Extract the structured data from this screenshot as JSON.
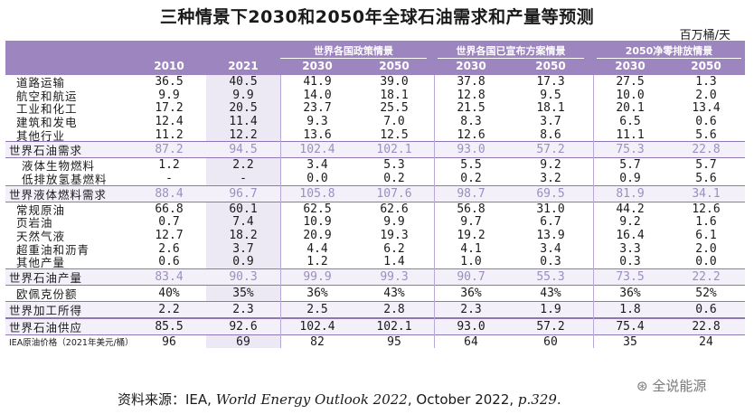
{
  "title": "三种情景下2030和2050年全球石油需求和产量等预测",
  "unit": "百万桶/天",
  "groups": [
    "世界各国政策情景",
    "世界各国已宣布方案情景",
    "2050净零排放情景"
  ],
  "years": [
    "2010",
    "2021",
    "2030",
    "2050",
    "2030",
    "2050",
    "2030",
    "2050"
  ],
  "rows": [
    {
      "label": "道路运输",
      "values": [
        "36.5",
        "40.5",
        "41.9",
        "39.0",
        "37.8",
        "17.3",
        "27.5",
        "1.3"
      ]
    },
    {
      "label": "航空和航运",
      "values": [
        "9.9",
        "9.9",
        "14.0",
        "18.1",
        "12.8",
        "9.5",
        "10.0",
        "2.0"
      ]
    },
    {
      "label": "工业和化工",
      "values": [
        "17.2",
        "20.5",
        "23.7",
        "25.5",
        "21.5",
        "18.1",
        "20.1",
        "13.4"
      ]
    },
    {
      "label": "建筑和发电",
      "values": [
        "12.4",
        "11.4",
        "9.3",
        "7.0",
        "8.3",
        "3.7",
        "6.5",
        "0.6"
      ]
    },
    {
      "label": "其他行业",
      "values": [
        "11.2",
        "12.2",
        "13.6",
        "12.5",
        "12.6",
        "8.6",
        "11.1",
        "5.6"
      ]
    },
    {
      "label": "世界石油需求",
      "values": [
        "87.2",
        "94.5",
        "102.4",
        "102.1",
        "93.0",
        "57.2",
        "75.3",
        "22.8"
      ]
    },
    {
      "label": "液体生物燃料",
      "values": [
        "1.2",
        "2.2",
        "3.4",
        "5.3",
        "5.5",
        "9.2",
        "5.7",
        "5.7"
      ]
    },
    {
      "label": "低排放氢基燃料",
      "values": [
        "-",
        "-",
        "0.0",
        "0.2",
        "0.2",
        "3.2",
        "0.9",
        "5.6"
      ]
    },
    {
      "label": "世界液体燃料需求",
      "values": [
        "88.4",
        "96.7",
        "105.8",
        "107.6",
        "98.7",
        "69.5",
        "81.9",
        "34.1"
      ]
    },
    {
      "label": "常规原油",
      "values": [
        "66.8",
        "60.1",
        "62.5",
        "62.6",
        "56.8",
        "31.0",
        "44.2",
        "12.6"
      ]
    },
    {
      "label": "页岩油",
      "values": [
        "0.7",
        "7.4",
        "10.9",
        "9.9",
        "9.7",
        "6.7",
        "9.2",
        "1.6"
      ]
    },
    {
      "label": "天然气液",
      "values": [
        "12.7",
        "18.2",
        "20.9",
        "19.3",
        "19.2",
        "13.9",
        "16.4",
        "6.1"
      ]
    },
    {
      "label": "超重油和沥青",
      "values": [
        "2.6",
        "3.7",
        "4.4",
        "6.2",
        "4.1",
        "3.4",
        "3.3",
        "2.0"
      ]
    },
    {
      "label": "其他产量",
      "values": [
        "0.6",
        "0.9",
        "1.2",
        "1.4",
        "1.0",
        "0.3",
        "0.3",
        "0.0"
      ]
    },
    {
      "label": "世界石油产量",
      "values": [
        "83.4",
        "90.3",
        "99.9",
        "99.3",
        "90.7",
        "55.3",
        "73.5",
        "22.2"
      ]
    },
    {
      "label": "欧佩克份额",
      "values": [
        "40%",
        "35%",
        "36%",
        "43%",
        "36%",
        "43%",
        "36%",
        "52%"
      ]
    },
    {
      "label": "世界加工所得",
      "values": [
        "2.2",
        "2.3",
        "2.5",
        "2.8",
        "2.3",
        "1.9",
        "1.8",
        "0.6"
      ]
    },
    {
      "label": "世界石油供应",
      "values": [
        "85.5",
        "92.6",
        "102.4",
        "102.1",
        "93.0",
        "57.2",
        "75.4",
        "22.8"
      ]
    },
    {
      "label": "IEA原油价格（2021年美元/桶）",
      "values": [
        "96",
        "69",
        "82",
        "95",
        "64",
        "60",
        "35",
        "24"
      ]
    }
  ],
  "source_prefix": "资料来源：IEA, ",
  "source_title": "World Energy Outlook 2022",
  "source_suffix": ", October 2022, ",
  "source_page": "p.329.",
  "watermark": "全说能源"
}
